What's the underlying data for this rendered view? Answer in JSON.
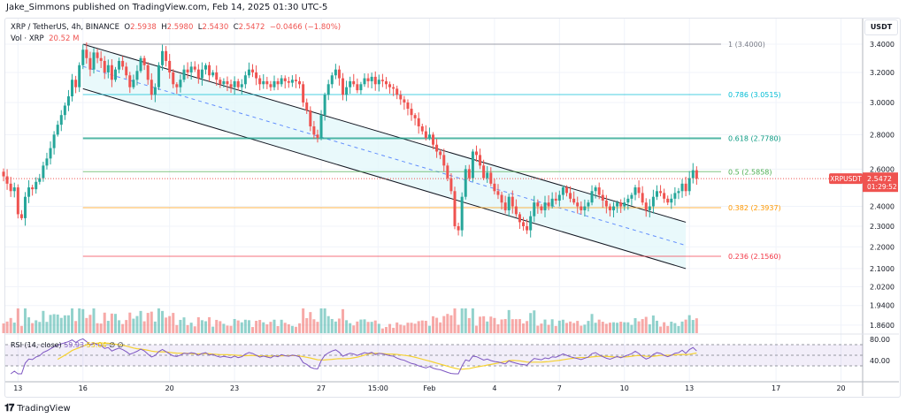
{
  "header": {
    "published": "Jake_Simmons published on TradingView.com, Feb 14, 2025 01:30 UTC-5"
  },
  "legend": {
    "symbol": "XRP / TetherUS, 4h, BINANCE",
    "o_label": "O",
    "open": "2.5938",
    "h_label": "H",
    "high": "2.5980",
    "l_label": "L",
    "low": "2.5430",
    "c_label": "C",
    "close": "2.5472",
    "change": "−0.0466 (−1.80%)",
    "vol_label": "Vol · XRP",
    "vol_value": "20.52 M"
  },
  "rsi_legend": {
    "label": "RSI (14, close)",
    "rsi": "59.93",
    "ma": "53.04",
    "n1": "∅",
    "n2": "∅"
  },
  "price_axis": {
    "currency": "USDT",
    "scale": "log",
    "ticks": [
      "3.4000",
      "3.2000",
      "3.0000",
      "2.8000",
      "2.6000",
      "2.4000",
      "2.3000",
      "2.2000",
      "2.1000",
      "2.0200",
      "1.9400",
      "1.8600"
    ]
  },
  "rsi_axis": {
    "ticks": [
      "80.00",
      "40.00"
    ]
  },
  "time_axis": {
    "ticks": [
      {
        "label": "13",
        "t": "2025-01-13 00:00"
      },
      {
        "label": "16",
        "t": "2025-01-16 00:00"
      },
      {
        "label": "20",
        "t": "2025-01-20 00:00"
      },
      {
        "label": "23",
        "t": "2025-01-23 00:00"
      },
      {
        "label": "27",
        "t": "2025-01-27 00:00"
      },
      {
        "label": "15:00",
        "t": "2025-01-29 15:00"
      },
      {
        "label": "Feb",
        "t": "2025-02-01 00:00"
      },
      {
        "label": "4",
        "t": "2025-02-04 00:00"
      },
      {
        "label": "7",
        "t": "2025-02-07 00:00"
      },
      {
        "label": "10",
        "t": "2025-02-10 00:00"
      },
      {
        "label": "13",
        "t": "2025-02-13 00:00"
      },
      {
        "label": "17",
        "t": "2025-02-17 00:00"
      },
      {
        "label": "20",
        "t": "2025-02-20 00:00"
      }
    ]
  },
  "last_price": {
    "symbol": "XRPUSDT",
    "price": "2.5472",
    "countdown": "01:29:52",
    "value": 2.5472
  },
  "colors": {
    "up": "#26a69a",
    "down": "#ef5350",
    "rsi": "#7e57c2",
    "rsi_ma": "#f5d130",
    "channel": "#e0f7fa"
  },
  "fib_levels": [
    {
      "label": "1 (3.4000)",
      "price": 3.4,
      "color": "#787b86"
    },
    {
      "label": "0.786 (3.0515)",
      "price": 3.0515,
      "color": "#00bcd4"
    },
    {
      "label": "0.618 (2.7780)",
      "price": 2.778,
      "color": "#089981"
    },
    {
      "label": "0.5 (2.5858)",
      "price": 2.5858,
      "color": "#4caf50"
    },
    {
      "label": "0.382 (2.3937)",
      "price": 2.3937,
      "color": "#ff9800"
    },
    {
      "label": "0.236 (2.1560)",
      "price": 2.156,
      "color": "#f23645"
    }
  ],
  "channel": {
    "upper": [
      {
        "t": "2025-01-16 00:00",
        "price": 3.4
      },
      {
        "t": "2025-02-12 20:00",
        "price": 2.32
      }
    ],
    "lower": [
      {
        "t": "2025-01-16 00:00",
        "price": 3.09
      },
      {
        "t": "2025-02-12 20:00",
        "price": 2.1
      }
    ]
  },
  "chart_data": {
    "type": "candlestick",
    "interval": "4h",
    "first_candle": "2025-01-12 08:00",
    "closes": [
      2.56,
      2.52,
      2.48,
      2.5,
      2.36,
      2.34,
      2.45,
      2.5,
      2.49,
      2.53,
      2.55,
      2.62,
      2.66,
      2.72,
      2.8,
      2.86,
      2.92,
      2.98,
      3.04,
      3.15,
      3.1,
      3.25,
      3.36,
      3.3,
      3.22,
      3.34,
      3.3,
      3.28,
      3.2,
      3.25,
      3.15,
      3.22,
      3.28,
      3.24,
      3.18,
      3.1,
      3.15,
      3.21,
      3.3,
      3.25,
      3.15,
      3.05,
      3.1,
      3.25,
      3.35,
      3.28,
      3.2,
      3.12,
      3.1,
      3.15,
      3.22,
      3.2,
      3.24,
      3.22,
      3.16,
      3.22,
      3.25,
      3.18,
      3.2,
      3.15,
      3.12,
      3.14,
      3.12,
      3.1,
      3.14,
      3.1,
      3.12,
      3.18,
      3.22,
      3.2,
      3.16,
      3.12,
      3.14,
      3.12,
      3.1,
      3.14,
      3.12,
      3.16,
      3.14,
      3.13,
      3.15,
      3.14,
      3.12,
      3.0,
      2.95,
      2.85,
      2.8,
      2.78,
      2.92,
      3.05,
      3.12,
      3.18,
      3.22,
      3.16,
      3.05,
      3.1,
      3.14,
      3.12,
      3.08,
      3.12,
      3.16,
      3.14,
      3.17,
      3.12,
      3.15,
      3.14,
      3.12,
      3.1,
      3.09,
      3.05,
      3.02,
      3.0,
      2.96,
      2.92,
      2.9,
      2.85,
      2.82,
      2.78,
      2.8,
      2.74,
      2.7,
      2.68,
      2.62,
      2.55,
      2.48,
      2.3,
      2.28,
      2.45,
      2.6,
      2.55,
      2.7,
      2.68,
      2.62,
      2.55,
      2.58,
      2.52,
      2.48,
      2.46,
      2.42,
      2.38,
      2.45,
      2.4,
      2.36,
      2.32,
      2.3,
      2.28,
      2.35,
      2.42,
      2.4,
      2.38,
      2.42,
      2.4,
      2.44,
      2.43,
      2.46,
      2.5,
      2.47,
      2.44,
      2.42,
      2.4,
      2.38,
      2.4,
      2.42,
      2.48,
      2.5,
      2.46,
      2.43,
      2.4,
      2.38,
      2.4,
      2.42,
      2.4,
      2.42,
      2.44,
      2.46,
      2.5,
      2.47,
      2.42,
      2.38,
      2.4,
      2.45,
      2.48,
      2.47,
      2.44,
      2.42,
      2.44,
      2.47,
      2.48,
      2.52,
      2.48,
      2.55,
      2.5938,
      2.5472
    ]
  }
}
